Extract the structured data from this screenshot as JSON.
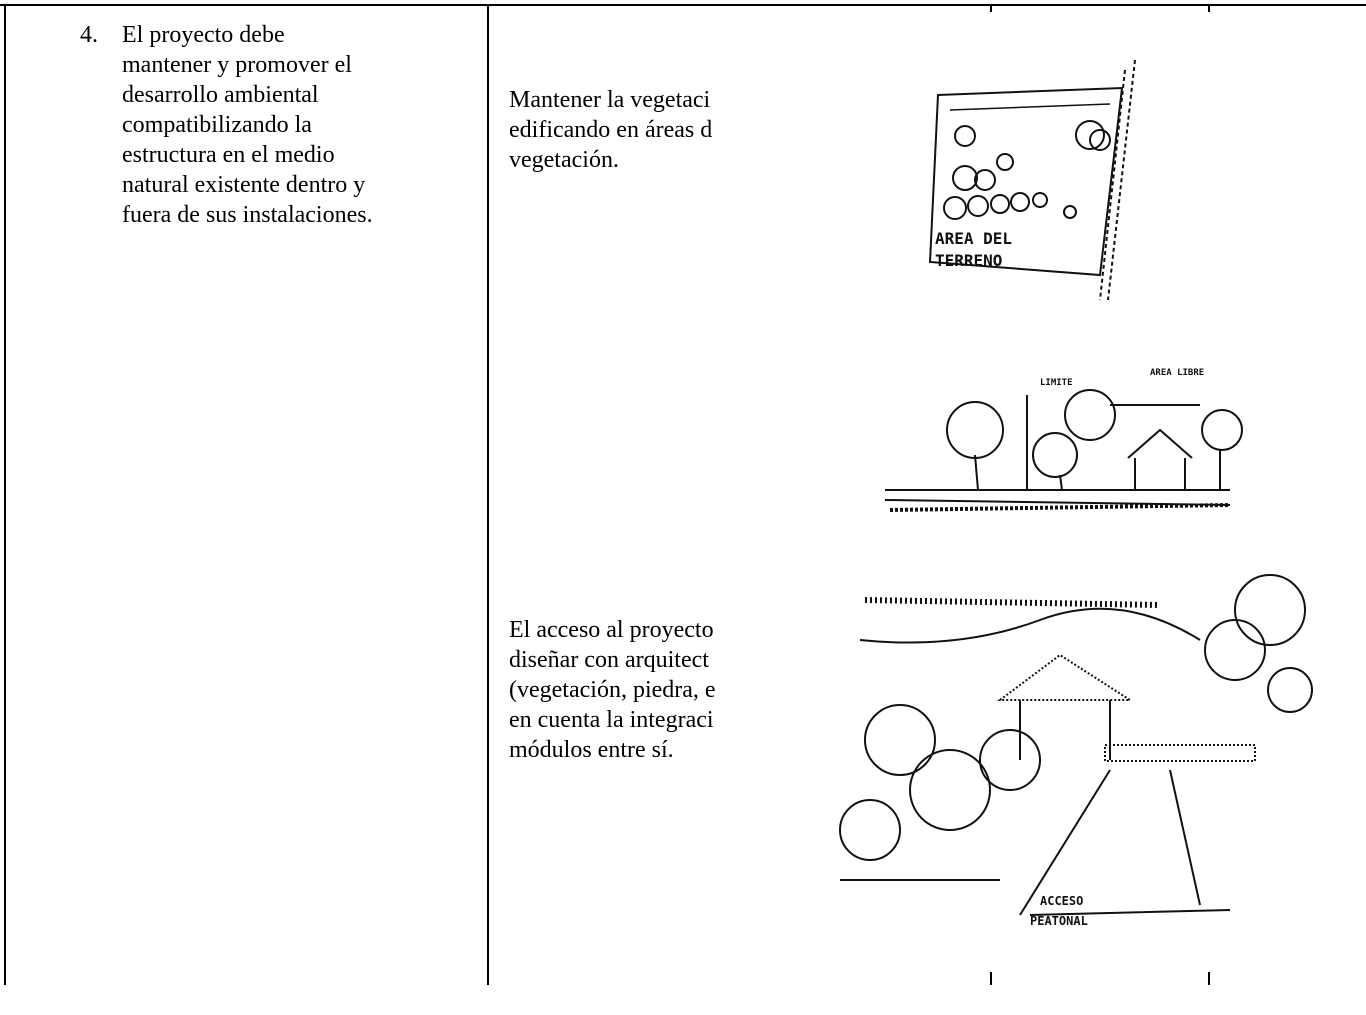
{
  "table": {
    "rows": [
      {
        "number": "4.",
        "requirement_lines": [
          "El proyecto debe",
          "mantener y promover el",
          "desarrollo ambiental",
          "compatibilizando la",
          "estructura en el medio",
          "natural existente dentro y",
          "fuera de sus instalaciones."
        ],
        "recommendations": [
          {
            "lines": [
              "Mantener la vegetaci",
              "edificando en áreas d",
              "vegetación."
            ]
          },
          {
            "lines": [
              "El acceso al proyecto",
              "diseñar con arquitect",
              "(vegetación, piedra, e",
              "en cuenta la integraci",
              "módulos entre sí."
            ]
          }
        ]
      }
    ]
  },
  "sketches": [
    {
      "labels": [
        "AREA DEL",
        "TERRENO"
      ]
    },
    {
      "labels": [
        "LIMITE",
        "AREA LIBRE"
      ]
    },
    {
      "labels": [
        "ACCESO",
        "PEATONAL"
      ]
    }
  ]
}
